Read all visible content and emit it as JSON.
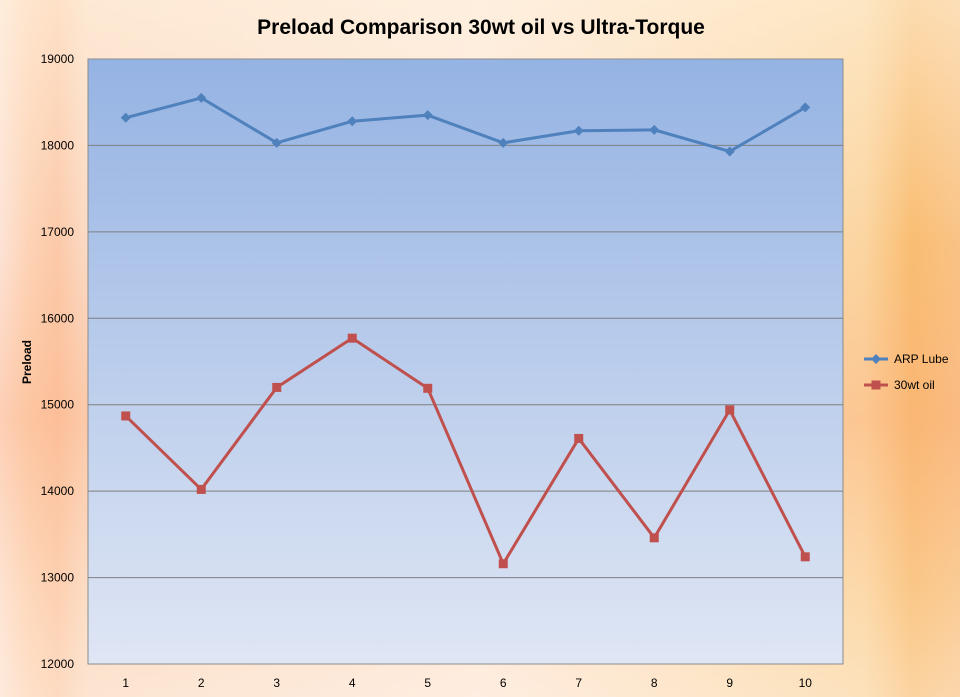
{
  "chart_data": {
    "type": "line",
    "title": "Preload Comparison 30wt oil vs Ultra-Torque",
    "xlabel": "",
    "ylabel": "Preload",
    "categories": [
      "1",
      "2",
      "3",
      "4",
      "5",
      "6",
      "7",
      "8",
      "9",
      "10"
    ],
    "ylim": [
      12000,
      19000
    ],
    "yticks": [
      "12000",
      "13000",
      "14000",
      "15000",
      "16000",
      "17000",
      "18000",
      "19000"
    ],
    "grid": true,
    "legend_position": "right",
    "series": [
      {
        "name": "ARP Lube",
        "color": "#4f81bd",
        "marker": "diamond",
        "values": [
          18320,
          18550,
          18030,
          18280,
          18350,
          18030,
          18170,
          18180,
          17930,
          18440
        ]
      },
      {
        "name": "30wt oil",
        "color": "#c0504d",
        "marker": "square",
        "values": [
          14870,
          14020,
          15200,
          15770,
          15190,
          13160,
          14610,
          13460,
          14940,
          13240
        ]
      }
    ]
  }
}
